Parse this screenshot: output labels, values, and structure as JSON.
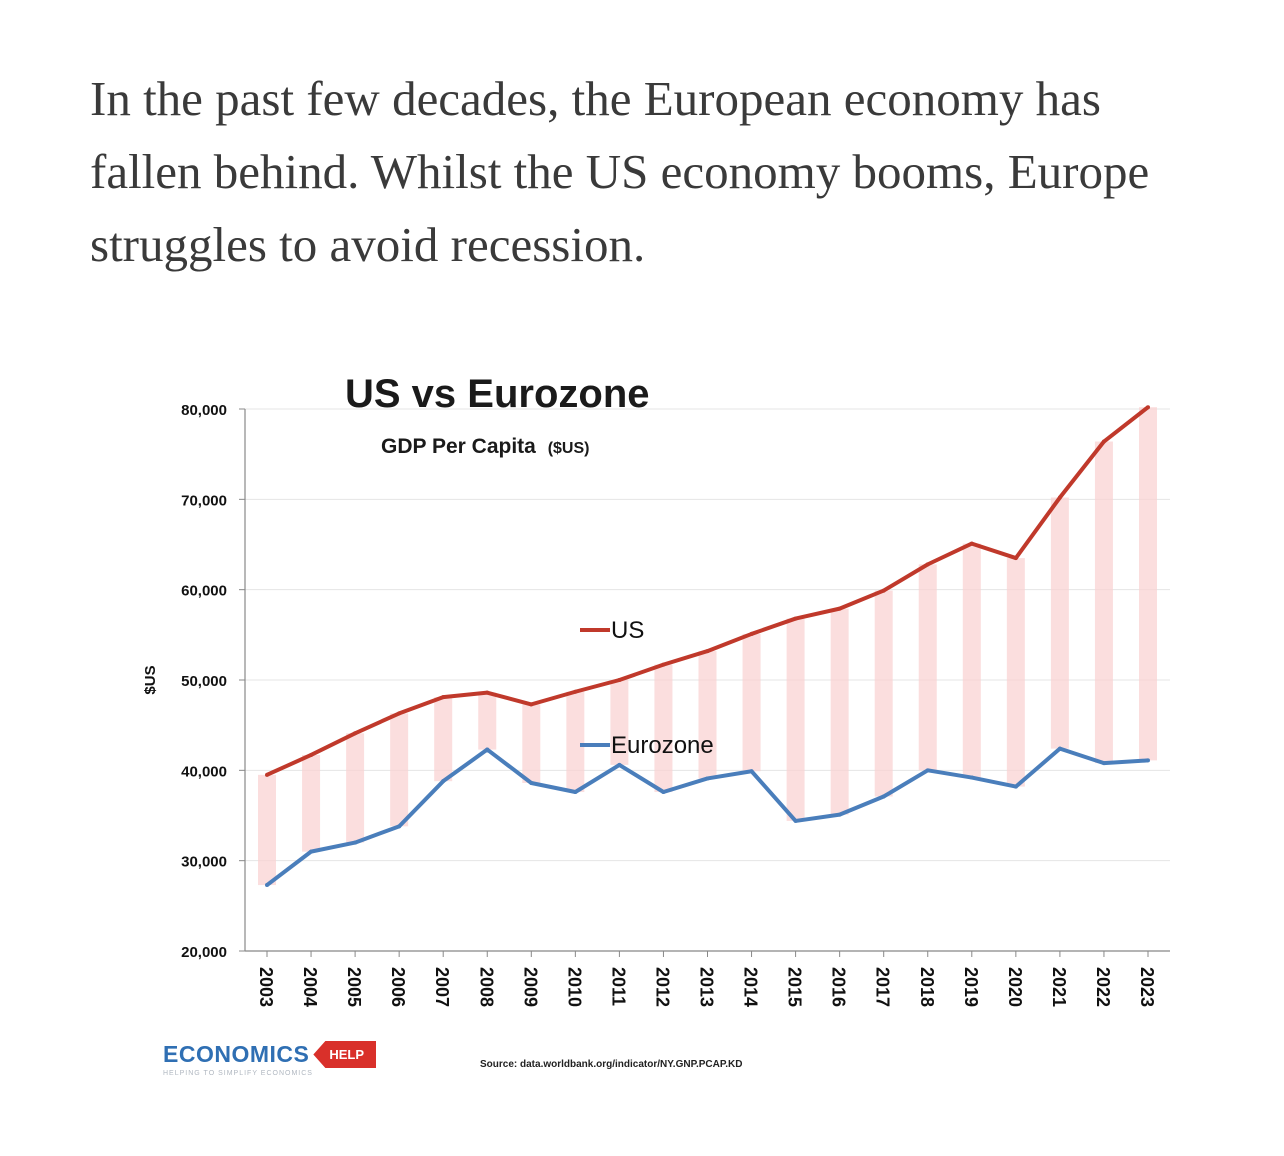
{
  "intro_text": "In the past few decades, the European economy has fallen behind. Whilst the US economy booms, Europe struggles to avoid recession.",
  "chart_data": {
    "type": "line",
    "title": "US vs Eurozone",
    "subtitle": "GDP Per Capita",
    "subtitle_unit": "($US)",
    "ylabel": "$US",
    "xlabel": "",
    "ylim": [
      20000,
      80000
    ],
    "y_ticks": [
      20000,
      30000,
      40000,
      50000,
      60000,
      70000,
      80000
    ],
    "y_tick_labels": [
      "20,000",
      "30,000",
      "40,000",
      "50,000",
      "60,000",
      "70,000",
      "80,000"
    ],
    "categories": [
      "2003",
      "2004",
      "2005",
      "2006",
      "2007",
      "2008",
      "2009",
      "2010",
      "2011",
      "2012",
      "2013",
      "2014",
      "2015",
      "2016",
      "2017",
      "2018",
      "2019",
      "2020",
      "2021",
      "2022",
      "2023"
    ],
    "series": [
      {
        "name": "US",
        "color": "#c0392b",
        "values": [
          39500,
          41700,
          44100,
          46300,
          48100,
          48600,
          47300,
          48700,
          50000,
          51700,
          53200,
          55100,
          56800,
          57900,
          59900,
          62800,
          65100,
          63500,
          70200,
          76400,
          80200
        ]
      },
      {
        "name": "Eurozone",
        "color": "#4a7ebb",
        "values": [
          27300,
          31000,
          32000,
          33800,
          38800,
          42300,
          38600,
          37600,
          40600,
          37600,
          39100,
          39900,
          34400,
          35100,
          37100,
          40000,
          39200,
          38200,
          42400,
          40800,
          41100
        ]
      }
    ],
    "gap_fill_color": "#f9d3d3",
    "grid": true,
    "legend": [
      "US",
      "Eurozone"
    ],
    "source": "Source: data.worldbank.org/indicator/NY.GNP.PCAP.KD"
  },
  "logo": {
    "main": "ECONOMICS",
    "tag": "HELP",
    "tagline": "HELPING TO SIMPLIFY ECONOMICS"
  }
}
